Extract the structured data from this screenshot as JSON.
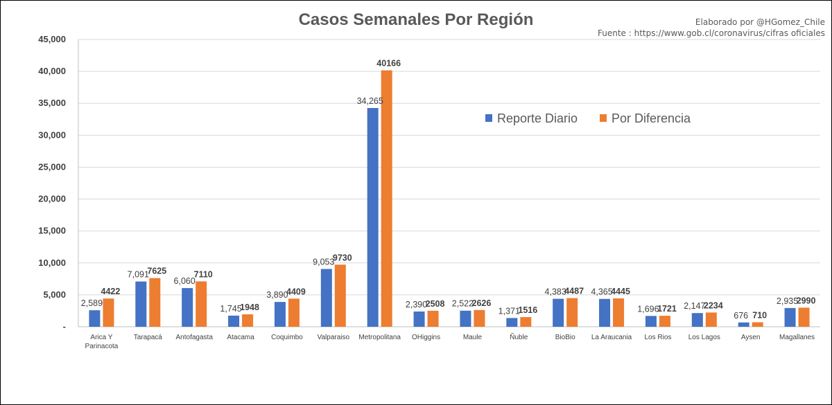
{
  "chart_data": {
    "type": "bar",
    "title": "Casos Semanales Por Región",
    "credit": "Elaborado por @HGomez_Chile",
    "source": "Fuente  : https://www.gob.cl/coronavirus/cifras oficiales",
    "categories": [
      [
        "Arica Y",
        "Parinacota"
      ],
      [
        "Tarapacá"
      ],
      [
        "Antofagasta"
      ],
      [
        "Atacama"
      ],
      [
        "Coquimbo"
      ],
      [
        "Valparaiso"
      ],
      [
        "Metropolitana"
      ],
      [
        "OHiggins"
      ],
      [
        "Maule"
      ],
      [
        "Ñuble"
      ],
      [
        "BioBio"
      ],
      [
        "La Araucania"
      ],
      [
        "Los Rios"
      ],
      [
        "Los Lagos"
      ],
      [
        "Aysen"
      ],
      [
        "Magallanes"
      ]
    ],
    "series": [
      {
        "name": "Reporte Diario",
        "color": "#4472C4",
        "values": [
          2589,
          7091,
          6060,
          1745,
          3890,
          9053,
          34265,
          2390,
          2522,
          1371,
          4383,
          4365,
          1696,
          2147,
          676,
          2935
        ],
        "labels": [
          "2,589",
          "7,091",
          "6,060",
          "1,745",
          "3,890",
          "9,053",
          "34,265",
          "2,390",
          "2,522",
          "1,371",
          "4,383",
          "4,365",
          "1,696",
          "2,147",
          "676",
          "2,935"
        ]
      },
      {
        "name": "Por Diferencia",
        "color": "#ED7D31",
        "values": [
          4422,
          7625,
          7110,
          1948,
          4409,
          9730,
          40166,
          2508,
          2626,
          1516,
          4487,
          4445,
          1721,
          2234,
          710,
          2990
        ],
        "labels": [
          "4422",
          "7625",
          "7110",
          "1948",
          "4409",
          "9730",
          "40166",
          "2508",
          "2626",
          "1516",
          "4487",
          "4445",
          "1721",
          "2234",
          "710",
          "2990"
        ]
      }
    ],
    "yticks": [
      0,
      5000,
      10000,
      15000,
      20000,
      25000,
      30000,
      35000,
      40000,
      45000
    ],
    "ytick_labels": [
      "-",
      "5,000",
      "10,000",
      "15,000",
      "20,000",
      "25,000",
      "30,000",
      "35,000",
      "40,000",
      "45,000"
    ],
    "ylim": [
      0,
      45000
    ],
    "grid": true,
    "legend_position": "top-right"
  }
}
